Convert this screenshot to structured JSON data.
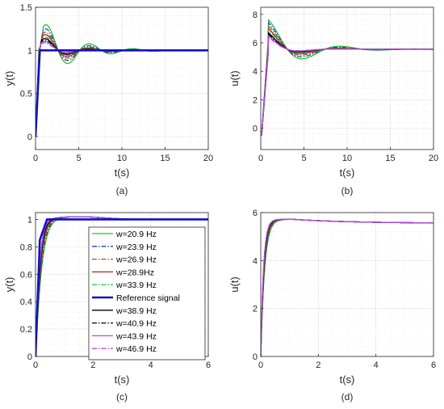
{
  "legend_entries": [
    {
      "label": "w=20.9 Hz",
      "color": "#22c522",
      "dash": "solid",
      "width": 1.3
    },
    {
      "label": "w=23.9 Hz",
      "color": "#1f3fcf",
      "dash": "dashdot",
      "width": 1.3
    },
    {
      "label": "w=26.9 Hz",
      "color": "#a0522d",
      "dash": "dashdot",
      "width": 1.3
    },
    {
      "label": "w=28.9Hz",
      "color": "#b02020",
      "dash": "solid",
      "width": 1.3
    },
    {
      "label": "w=33.9 Hz",
      "color": "#2ecc40",
      "dash": "dashdot",
      "width": 1.3
    },
    {
      "label": "Reference signal",
      "color": "#1010c8",
      "dash": "solid",
      "width": 2.6
    },
    {
      "label": "w=38.9 Hz",
      "color": "#000000",
      "dash": "solid",
      "width": 1.3
    },
    {
      "label": "w=40.9 Hz",
      "color": "#000000",
      "dash": "dashdot",
      "width": 1.3
    },
    {
      "label": "w=43.9 Hz",
      "color": "#b44be1",
      "dash": "solid",
      "width": 1.3
    },
    {
      "label": "w=46.9 Hz",
      "color": "#b44be1",
      "dash": "dashdot",
      "width": 1.3
    }
  ],
  "chart_data": [
    {
      "type": "line",
      "caption": "(a)",
      "xlabel": "t(s)",
      "ylabel": "y(t)",
      "xlim": [
        0,
        20
      ],
      "ylim": [
        -0.15,
        1.5
      ],
      "xticks": [
        0,
        5,
        10,
        15,
        20
      ],
      "yticks": [
        0,
        0.5,
        1,
        1.5
      ],
      "xtick_labels": [
        "0",
        "5",
        "10",
        "15",
        "20"
      ],
      "ytick_labels": [
        "0",
        "0.5",
        "1",
        "1.5"
      ],
      "grid": true,
      "reference": {
        "name": "Reference signal",
        "x": [
          0,
          0.5,
          20
        ],
        "y": [
          0,
          1,
          1
        ]
      },
      "response": {
        "kind": "output",
        "final": 1.0,
        "peak_time": 1.8,
        "peaks": [
          1.36,
          1.31,
          1.27,
          1.24,
          1.21,
          1.19,
          1.17,
          1.15,
          1.13
        ]
      }
    },
    {
      "type": "line",
      "caption": "(b)",
      "xlabel": "t(s)",
      "ylabel": "u(t)",
      "xlim": [
        0,
        20
      ],
      "ylim": [
        -1.5,
        8.5
      ],
      "xticks": [
        0,
        5,
        10,
        15,
        20
      ],
      "yticks": [
        0,
        2,
        4,
        6,
        8
      ],
      "xtick_labels": [
        "0",
        "5",
        "10",
        "15",
        "20"
      ],
      "ytick_labels": [
        "0",
        "2",
        "4",
        "6",
        "8"
      ],
      "grid": true,
      "response": {
        "kind": "control",
        "start": -0.5,
        "final": 5.55,
        "peak_time": 1.8,
        "peaks": [
          7.6,
          7.4,
          7.2,
          7.0,
          6.9,
          6.7,
          6.6,
          6.5,
          6.4
        ]
      }
    },
    {
      "type": "line",
      "caption": "(c)",
      "xlabel": "t(s)",
      "ylabel": "y(t)",
      "xlim": [
        0,
        6
      ],
      "ylim": [
        0,
        1.05
      ],
      "xticks": [
        0,
        2,
        4,
        6
      ],
      "yticks": [
        0,
        0.2,
        0.4,
        0.6,
        0.8,
        1
      ],
      "xtick_labels": [
        "0",
        "2",
        "4",
        "6"
      ],
      "ytick_labels": [
        "0",
        "0.2",
        "0.4",
        "0.6",
        "0.8",
        "1"
      ],
      "grid": true,
      "legend_position": "inside-center",
      "reference": {
        "name": "Reference signal",
        "x": [
          0,
          0.15,
          0.4,
          6
        ],
        "y": [
          0,
          0.85,
          1.0,
          1.0
        ]
      },
      "response": {
        "kind": "output-damped",
        "final": 1.0,
        "peak": 1.02
      }
    },
    {
      "type": "line",
      "caption": "(d)",
      "xlabel": "t(s)",
      "ylabel": "u(t)",
      "xlim": [
        0,
        6
      ],
      "ylim": [
        0,
        6
      ],
      "xticks": [
        0,
        2,
        4,
        6
      ],
      "yticks": [
        0,
        2,
        4,
        6
      ],
      "xtick_labels": [
        "0",
        "2",
        "4",
        "6"
      ],
      "ytick_labels": [
        "0",
        "2",
        "4",
        "6"
      ],
      "grid": true,
      "response": {
        "kind": "control-damped",
        "final": 5.55,
        "peak": 5.72
      }
    }
  ]
}
